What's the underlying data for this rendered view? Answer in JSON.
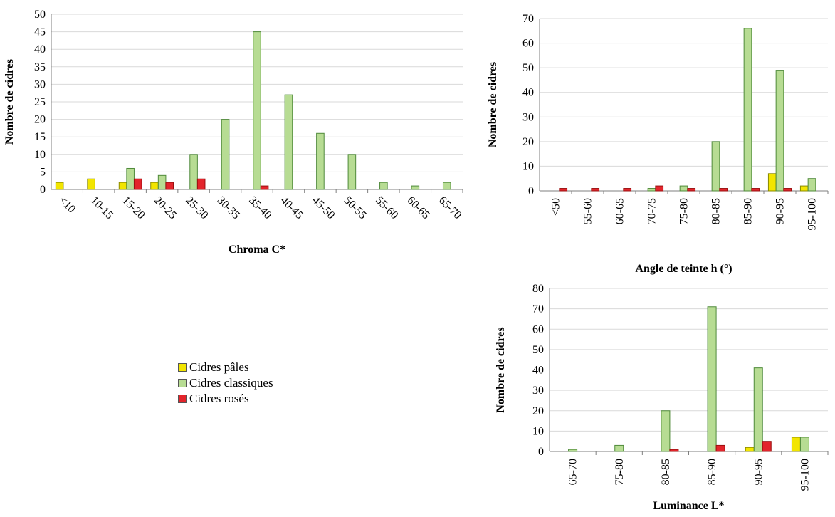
{
  "legend": {
    "placement": "center-left",
    "items": [
      {
        "label": "Cidres pâles",
        "color": "#f2e500"
      },
      {
        "label": "Cidres classiques",
        "color": "#b7dc93"
      },
      {
        "label": "Cidres rosés",
        "color": "#e3242b"
      }
    ]
  },
  "chart_data": [
    {
      "type": "bar",
      "xlabel": "Chroma C*",
      "ylabel": "Nombre de cidres",
      "ylim": [
        0,
        50
      ],
      "yticks": [
        0,
        5,
        10,
        15,
        20,
        25,
        30,
        35,
        40,
        45,
        50
      ],
      "grid": true,
      "tick_rotation": 45,
      "categories": [
        "<10",
        "10-15",
        "15-20",
        "20-25",
        "25-30",
        "30-35",
        "35-40",
        "40-45",
        "45-50",
        "50-55",
        "55-60",
        "60-65",
        "65-70"
      ],
      "series": [
        {
          "name": "Cidres pâles",
          "values": [
            2,
            3,
            2,
            2,
            0,
            0,
            0,
            0,
            0,
            0,
            0,
            0,
            0
          ]
        },
        {
          "name": "Cidres classiques",
          "values": [
            0,
            0,
            6,
            4,
            10,
            20,
            45,
            27,
            16,
            10,
            2,
            1,
            2
          ]
        },
        {
          "name": "Cidres rosés",
          "values": [
            0,
            0,
            3,
            2,
            3,
            0,
            1,
            0,
            0,
            0,
            0,
            0,
            0
          ]
        }
      ]
    },
    {
      "type": "bar",
      "xlabel": "Angle de teinte h (°)",
      "ylabel": "Nombre de cidres",
      "ylim": [
        0,
        70
      ],
      "yticks": [
        0,
        10,
        20,
        30,
        40,
        50,
        60,
        70
      ],
      "grid": true,
      "tick_rotation": 90,
      "categories": [
        "<50",
        "55-60",
        "60-65",
        "70-75",
        "75-80",
        "80-85",
        "85-90",
        "90-95",
        "95-100"
      ],
      "series": [
        {
          "name": "Cidres pâles",
          "values": [
            0,
            0,
            0,
            0,
            0,
            0,
            0,
            7,
            2
          ]
        },
        {
          "name": "Cidres classiques",
          "values": [
            0,
            0,
            0,
            1,
            2,
            20,
            66,
            49,
            5
          ]
        },
        {
          "name": "Cidres rosés",
          "values": [
            1,
            1,
            1,
            2,
            1,
            1,
            1,
            1,
            0
          ]
        }
      ]
    },
    {
      "type": "bar",
      "xlabel": "Luminance L*",
      "ylabel": "Nombre de cidres",
      "ylim": [
        0,
        80
      ],
      "yticks": [
        0,
        10,
        20,
        30,
        40,
        50,
        60,
        70,
        80
      ],
      "grid": true,
      "tick_rotation": 90,
      "categories": [
        "65-70",
        "75-80",
        "80-85",
        "85-90",
        "90-95",
        "95-100"
      ],
      "series": [
        {
          "name": "Cidres pâles",
          "values": [
            0,
            0,
            0,
            0,
            2,
            7
          ]
        },
        {
          "name": "Cidres classiques",
          "values": [
            1,
            3,
            20,
            71,
            41,
            7
          ]
        },
        {
          "name": "Cidres rosés",
          "values": [
            0,
            0,
            1,
            3,
            5,
            0
          ]
        }
      ]
    }
  ]
}
